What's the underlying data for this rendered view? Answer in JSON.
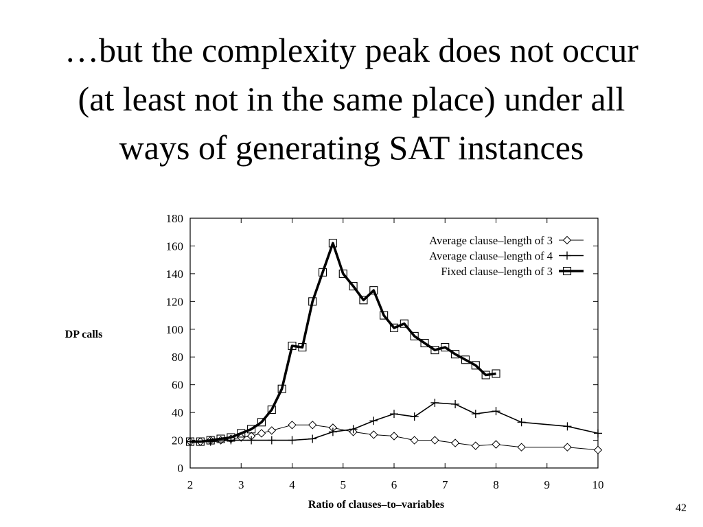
{
  "slide": {
    "title_lines": [
      "…but the complexity peak does not occur",
      "(at least not in the same place) under all",
      "ways of generating SAT instances"
    ],
    "page_number": "42"
  },
  "chart_data": {
    "type": "line",
    "xlabel": "Ratio of clauses–to–variables",
    "ylabel": "DP calls",
    "xlim": [
      2,
      10
    ],
    "ylim": [
      0,
      180
    ],
    "xticks": [
      2,
      3,
      4,
      5,
      6,
      7,
      8,
      9,
      10
    ],
    "yticks": [
      0,
      20,
      40,
      60,
      80,
      100,
      120,
      140,
      160,
      180
    ],
    "grid": false,
    "legend_position": "top-right",
    "series": [
      {
        "name": "Average clause–length of 3",
        "marker": "diamond",
        "line_weight": "thin",
        "x": [
          2,
          2.2,
          2.4,
          2.6,
          2.8,
          3.0,
          3.2,
          3.4,
          3.6,
          4.0,
          4.4,
          4.8,
          5.2,
          5.6,
          6.0,
          6.4,
          6.8,
          7.2,
          7.6,
          8.0,
          8.5,
          9.4,
          10
        ],
        "y": [
          19,
          19,
          20,
          20,
          21,
          22,
          23,
          25,
          27,
          31,
          31,
          29,
          26,
          24,
          23,
          20,
          20,
          18,
          16,
          17,
          15,
          15,
          13
        ]
      },
      {
        "name": "Average clause–length of 4",
        "marker": "plus",
        "line_weight": "medium",
        "x": [
          2,
          2.4,
          2.8,
          3.2,
          3.6,
          4.0,
          4.4,
          4.8,
          5.2,
          5.6,
          6.0,
          6.4,
          6.8,
          7.2,
          7.6,
          8.0,
          8.5,
          9.4,
          10
        ],
        "y": [
          19,
          19,
          20,
          20,
          20,
          20,
          21,
          26,
          28,
          34,
          39,
          37,
          47,
          46,
          39,
          41,
          33,
          30,
          25
        ]
      },
      {
        "name": "Fixed clause–length of 3",
        "marker": "square",
        "line_weight": "thick",
        "x": [
          2,
          2.2,
          2.4,
          2.6,
          2.8,
          3.0,
          3.2,
          3.4,
          3.6,
          3.8,
          4.0,
          4.2,
          4.4,
          4.6,
          4.8,
          5.0,
          5.2,
          5.4,
          5.6,
          5.8,
          6.0,
          6.2,
          6.4,
          6.6,
          6.8,
          7.0,
          7.2,
          7.4,
          7.6,
          7.8,
          8.0
        ],
        "y": [
          19,
          19,
          20,
          21,
          22,
          25,
          28,
          33,
          42,
          57,
          88,
          87,
          120,
          141,
          162,
          140,
          131,
          121,
          128,
          110,
          101,
          104,
          95,
          90,
          85,
          87,
          82,
          78,
          74,
          67,
          68
        ]
      }
    ]
  }
}
